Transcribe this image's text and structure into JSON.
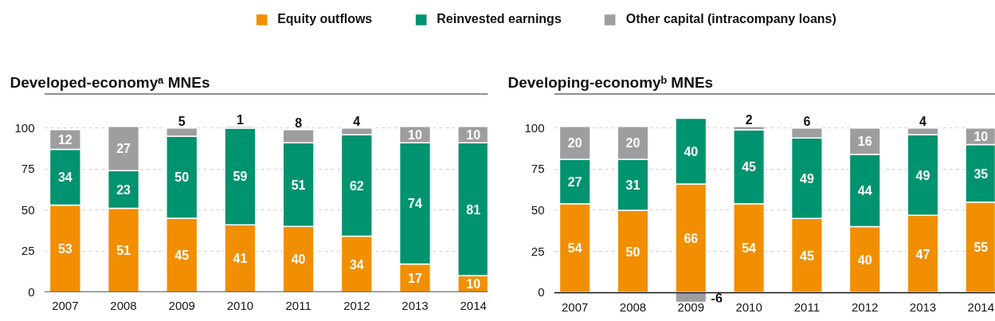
{
  "chart_data": [
    {
      "type": "bar",
      "title": "Developed-economyᵃ MNEs",
      "categories": [
        "2007",
        "2008",
        "2009",
        "2010",
        "2011",
        "2012",
        "2013",
        "2014"
      ],
      "series": [
        {
          "name": "Equity outflows",
          "color": "#f18f00",
          "values": [
            53,
            51,
            45,
            41,
            40,
            34,
            17,
            10
          ]
        },
        {
          "name": "Reinvested earnings",
          "color": "#00936f",
          "values": [
            34,
            23,
            50,
            59,
            51,
            62,
            74,
            81
          ]
        },
        {
          "name": "Other capital (intracompany loans)",
          "color": "#9e9ea0",
          "values": [
            12,
            27,
            5,
            1,
            8,
            4,
            10,
            10
          ]
        }
      ],
      "stacked": true,
      "ylim": [
        0,
        121
      ],
      "yticks": [
        0,
        25,
        50,
        75,
        100
      ],
      "grid": "y",
      "legend": "top",
      "data_labels": true
    },
    {
      "type": "bar",
      "title": "Developing-economyᵇ MNEs",
      "categories": [
        "2007",
        "2008",
        "2009",
        "2010",
        "2011",
        "2012",
        "2013",
        "2014"
      ],
      "series": [
        {
          "color": "#f18f00",
          "values": [
            54,
            50,
            66,
            54,
            45,
            40,
            47,
            55
          ]
        },
        {
          "color": "#00936f",
          "values": [
            27,
            31,
            40,
            45,
            49,
            44,
            49,
            35
          ]
        },
        {
          "color": "#9e9ea0",
          "values": [
            20,
            20,
            -6,
            2,
            6,
            16,
            4,
            10
          ]
        }
      ],
      "stacked": true,
      "ylim": [
        -6,
        121
      ],
      "yticks": [
        0,
        25,
        50,
        75,
        100
      ],
      "grid": "y",
      "data_labels": true
    }
  ]
}
